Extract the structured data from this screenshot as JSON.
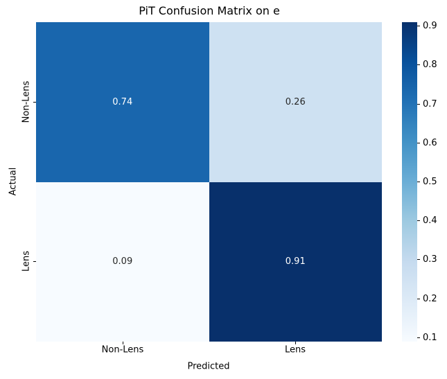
{
  "chart_data": {
    "type": "heatmap",
    "title": "PiT Confusion Matrix on e",
    "xlabel": "Predicted",
    "ylabel": "Actual",
    "x_categories": [
      "Non-Lens",
      "Lens"
    ],
    "y_categories": [
      "Non-Lens",
      "Lens"
    ],
    "values": [
      [
        0.74,
        0.26
      ],
      [
        0.09,
        0.91
      ]
    ],
    "cell_labels": [
      [
        "0.74",
        "0.26"
      ],
      [
        "0.09",
        "0.91"
      ]
    ],
    "cell_colors": [
      [
        "#1966ad",
        "#cee1f2"
      ],
      [
        "#f7fbff",
        "#08306b"
      ]
    ],
    "cell_text_colors": [
      [
        "#ffffff",
        "#262626"
      ],
      [
        "#262626",
        "#ffffff"
      ]
    ],
    "colormap": "Blues",
    "grid": false,
    "colorbar": {
      "position": "right",
      "vmin": 0.09,
      "vmax": 0.91,
      "ticks": [
        "0.9",
        "0.8",
        "0.7",
        "0.6",
        "0.5",
        "0.4",
        "0.3",
        "0.2",
        "0.1"
      ],
      "gradient_stops": [
        "#f7fbff",
        "#deebf7",
        "#c6dbef",
        "#9ecae1",
        "#6baed6",
        "#4292c6",
        "#2171b5",
        "#08519c",
        "#08306b"
      ]
    }
  }
}
